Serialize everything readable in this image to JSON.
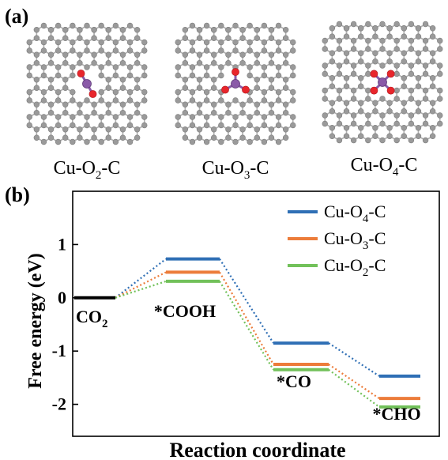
{
  "panel_a": {
    "label": "(a)",
    "structures": [
      {
        "name": "Cu-O2-C",
        "prefix": "Cu-O",
        "sub": "2",
        "suffix": "-C",
        "oxygens": 2
      },
      {
        "name": "Cu-O3-C",
        "prefix": "Cu-O",
        "sub": "3",
        "suffix": "-C",
        "oxygens": 3
      },
      {
        "name": "Cu-O4-C",
        "prefix": "Cu-O",
        "sub": "4",
        "suffix": "-C",
        "oxygens": 4
      }
    ],
    "colors": {
      "carbon": "#9a9a9a",
      "oxygen": "#e8262c",
      "copper": "#8a5aa8",
      "bond": "#b0b0b0"
    }
  },
  "panel_b": {
    "label": "(b)"
  },
  "chart_data": {
    "type": "line",
    "title": "",
    "xlabel": "Reaction coordinate",
    "ylabel": "Free energy (eV)",
    "ylim": [
      -2.6,
      2.0
    ],
    "yticks": [
      1,
      0,
      -1,
      -2
    ],
    "ytick_labels": [
      "1",
      "0",
      "-1",
      "-2"
    ],
    "states": [
      {
        "label": "CO",
        "sub": "2",
        "name": "CO2"
      },
      {
        "label": "*COOH",
        "sub": "",
        "name": "*COOH"
      },
      {
        "label": "*CO",
        "sub": "",
        "name": "*CO"
      },
      {
        "label": "*CHO",
        "sub": "",
        "name": "*CHO"
      }
    ],
    "initial": {
      "name": "CO2",
      "value": 0.0,
      "color": "#000000"
    },
    "series": [
      {
        "name": "Cu-O4-C",
        "prefix": "Cu-O",
        "sub": "4",
        "suffix": "-C",
        "color": "#2f6fb5",
        "values": [
          0.0,
          0.73,
          -0.85,
          -1.47
        ]
      },
      {
        "name": "Cu-O3-C",
        "prefix": "Cu-O",
        "sub": "3",
        "suffix": "-C",
        "color": "#ec7c3a",
        "values": [
          0.0,
          0.48,
          -1.25,
          -1.89
        ]
      },
      {
        "name": "Cu-O2-C",
        "prefix": "Cu-O",
        "sub": "2",
        "suffix": "-C",
        "color": "#72c15a",
        "values": [
          0.0,
          0.31,
          -1.35,
          -2.05
        ]
      }
    ],
    "legend_position": "top-right",
    "grid": false
  }
}
